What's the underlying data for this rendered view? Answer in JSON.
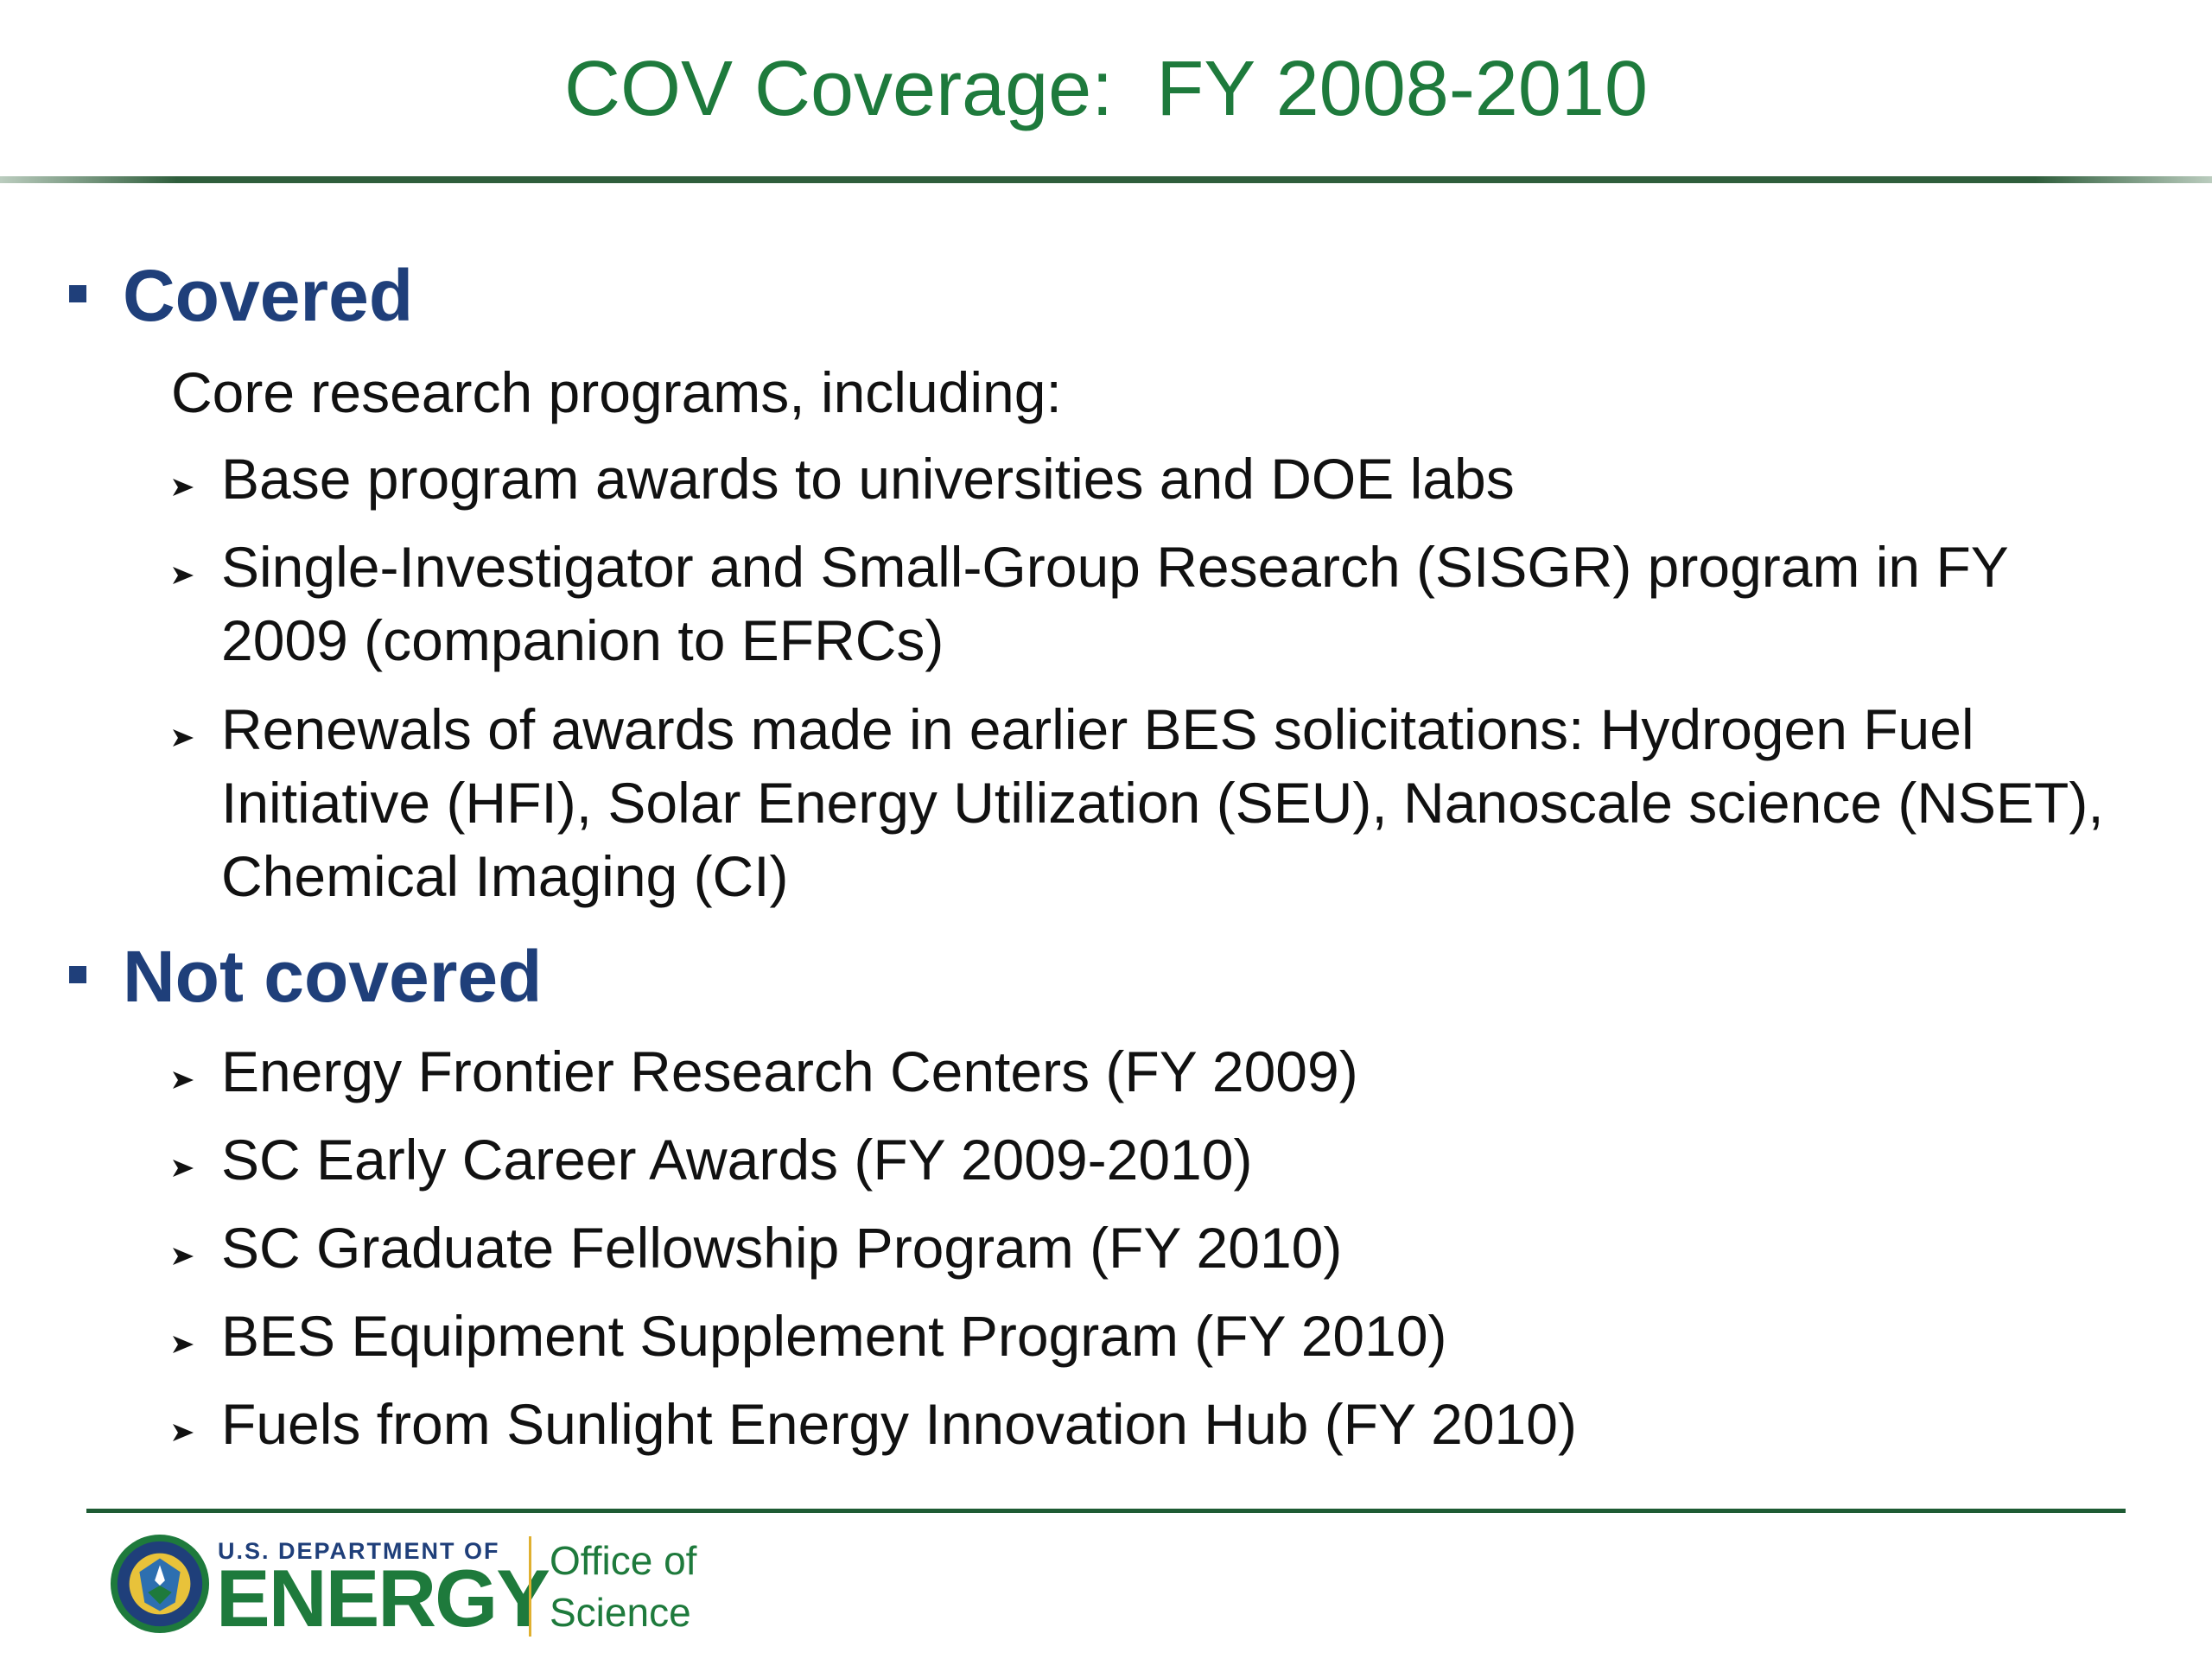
{
  "slide": {
    "title": "COV Coverage:  FY 2008-2010"
  },
  "covered": {
    "heading": "Covered",
    "intro": "Core research programs, including:",
    "items": [
      "Base program awards to universities and DOE labs",
      "Single-Investigator and Small-Group Research (SISGR) program in FY 2009 (companion to EFRCs)",
      "Renewals of awards made in earlier BES solicitations:  Hydrogen Fuel Initiative (HFI), Solar Energy Utilization (SEU), Nanoscale science (NSET), Chemical Imaging (CI)"
    ]
  },
  "not_covered": {
    "heading": "Not covered",
    "items": [
      "Energy Frontier Research Centers (FY 2009)",
      "SC Early Career Awards (FY 2009-2010)",
      "SC Graduate Fellowship Program (FY 2010)",
      "BES Equipment Supplement Program (FY 2010)",
      "Fuels from Sunlight Energy Innovation Hub (FY 2010)"
    ]
  },
  "footer": {
    "department_small": "U.S. DEPARTMENT OF",
    "department_big": "ENERGY",
    "office_line1": "Office of",
    "office_line2": "Science"
  },
  "colors": {
    "title": "#1e7a3c",
    "heading": "#1f3f7a",
    "footer_rule": "#1e5b34"
  },
  "icons": {
    "section_bullet": "square-bullet-icon",
    "item_bullet": "arrow-bullet-icon",
    "logo": "doe-seal-icon"
  }
}
